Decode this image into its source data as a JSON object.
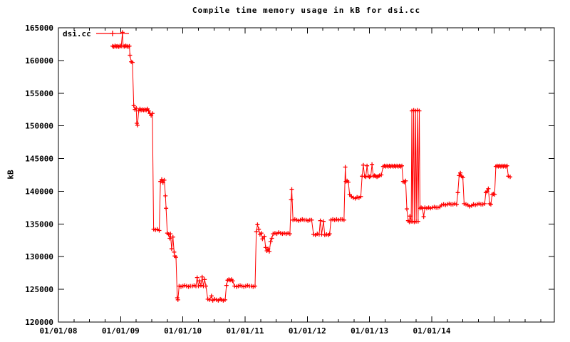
{
  "chart_data": {
    "type": "line",
    "title": "Compile time memory usage in kB for dsi.cc",
    "xlabel": "",
    "ylabel": "kB",
    "x_unit": "decimal_year",
    "xlim": [
      2008.0,
      2015.97
    ],
    "ylim": [
      120000,
      165000
    ],
    "grid": false,
    "legend_position": "top-left",
    "marker": "plus",
    "line_color": "#ff0000",
    "axis_color": "#000000",
    "background_color": "#ffffff",
    "x_minor_tick_step": 0.25,
    "x_ticks": [
      {
        "pos": 2008,
        "label": "01/01/08"
      },
      {
        "pos": 2009,
        "label": "01/01/09"
      },
      {
        "pos": 2010,
        "label": "01/01/10"
      },
      {
        "pos": 2011,
        "label": "01/01/11"
      },
      {
        "pos": 2012,
        "label": "01/01/12"
      },
      {
        "pos": 2013,
        "label": "01/01/13"
      },
      {
        "pos": 2014,
        "label": "01/01/14"
      },
      {
        "pos": 2015,
        "label": ""
      }
    ],
    "y_ticks": [
      {
        "pos": 120000,
        "label": "120000"
      },
      {
        "pos": 125000,
        "label": "125000"
      },
      {
        "pos": 130000,
        "label": "130000"
      },
      {
        "pos": 135000,
        "label": "135000"
      },
      {
        "pos": 140000,
        "label": "140000"
      },
      {
        "pos": 145000,
        "label": "145000"
      },
      {
        "pos": 150000,
        "label": "150000"
      },
      {
        "pos": 155000,
        "label": "155000"
      },
      {
        "pos": 160000,
        "label": "160000"
      },
      {
        "pos": 165000,
        "label": "165000"
      }
    ],
    "series": [
      {
        "name": "dsi.cc",
        "points": [
          [
            2008.87,
            162200
          ],
          [
            2008.89,
            162100
          ],
          [
            2008.91,
            162250
          ],
          [
            2008.93,
            162150
          ],
          [
            2008.95,
            162200
          ],
          [
            2008.97,
            162100
          ],
          [
            2008.99,
            162250
          ],
          [
            2009.01,
            162200
          ],
          [
            2009.03,
            164300
          ],
          [
            2009.04,
            162200
          ],
          [
            2009.06,
            162150
          ],
          [
            2009.08,
            162250
          ],
          [
            2009.1,
            162200
          ],
          [
            2009.12,
            162100
          ],
          [
            2009.14,
            162200
          ],
          [
            2009.15,
            160800
          ],
          [
            2009.17,
            159800
          ],
          [
            2009.19,
            159700
          ],
          [
            2009.21,
            153100
          ],
          [
            2009.23,
            152500
          ],
          [
            2009.25,
            152700
          ],
          [
            2009.26,
            150400
          ],
          [
            2009.27,
            150100
          ],
          [
            2009.29,
            152300
          ],
          [
            2009.31,
            152600
          ],
          [
            2009.33,
            152400
          ],
          [
            2009.35,
            152500
          ],
          [
            2009.37,
            152400
          ],
          [
            2009.39,
            152500
          ],
          [
            2009.41,
            152400
          ],
          [
            2009.43,
            152600
          ],
          [
            2009.45,
            152300
          ],
          [
            2009.47,
            151900
          ],
          [
            2009.49,
            151600
          ],
          [
            2009.51,
            151900
          ],
          [
            2009.53,
            134200
          ],
          [
            2009.56,
            134100
          ],
          [
            2009.59,
            134200
          ],
          [
            2009.62,
            134000
          ],
          [
            2009.64,
            141500
          ],
          [
            2009.66,
            141800
          ],
          [
            2009.68,
            141300
          ],
          [
            2009.7,
            141700
          ],
          [
            2009.72,
            139300
          ],
          [
            2009.73,
            137400
          ],
          [
            2009.75,
            133600
          ],
          [
            2009.77,
            133400
          ],
          [
            2009.79,
            132800
          ],
          [
            2009.8,
            133500
          ],
          [
            2009.82,
            131200
          ],
          [
            2009.84,
            133000
          ],
          [
            2009.86,
            130700
          ],
          [
            2009.87,
            130100
          ],
          [
            2009.89,
            129900
          ],
          [
            2009.91,
            123700
          ],
          [
            2009.92,
            123400
          ],
          [
            2009.94,
            125500
          ],
          [
            2009.97,
            125400
          ],
          [
            2010.0,
            125500
          ],
          [
            2010.03,
            125600
          ],
          [
            2010.06,
            125500
          ],
          [
            2010.09,
            125400
          ],
          [
            2010.12,
            125500
          ],
          [
            2010.15,
            125500
          ],
          [
            2010.18,
            125600
          ],
          [
            2010.21,
            125500
          ],
          [
            2010.23,
            126800
          ],
          [
            2010.25,
            125500
          ],
          [
            2010.27,
            126300
          ],
          [
            2010.29,
            125600
          ],
          [
            2010.31,
            126900
          ],
          [
            2010.33,
            125500
          ],
          [
            2010.35,
            126500
          ],
          [
            2010.37,
            125500
          ],
          [
            2010.4,
            123500
          ],
          [
            2010.43,
            123400
          ],
          [
            2010.46,
            124000
          ],
          [
            2010.48,
            123300
          ],
          [
            2010.51,
            123500
          ],
          [
            2010.54,
            123400
          ],
          [
            2010.57,
            123300
          ],
          [
            2010.6,
            123500
          ],
          [
            2010.62,
            123400
          ],
          [
            2010.65,
            123300
          ],
          [
            2010.68,
            123400
          ],
          [
            2010.7,
            125600
          ],
          [
            2010.72,
            126400
          ],
          [
            2010.74,
            126500
          ],
          [
            2010.76,
            126400
          ],
          [
            2010.78,
            126500
          ],
          [
            2010.8,
            126300
          ],
          [
            2010.83,
            125500
          ],
          [
            2010.86,
            125400
          ],
          [
            2010.89,
            125500
          ],
          [
            2010.92,
            125600
          ],
          [
            2010.95,
            125500
          ],
          [
            2010.98,
            125400
          ],
          [
            2011.01,
            125500
          ],
          [
            2011.04,
            125600
          ],
          [
            2011.07,
            125500
          ],
          [
            2011.1,
            125500
          ],
          [
            2011.13,
            125400
          ],
          [
            2011.16,
            125500
          ],
          [
            2011.18,
            133800
          ],
          [
            2011.2,
            134900
          ],
          [
            2011.22,
            134200
          ],
          [
            2011.24,
            133400
          ],
          [
            2011.26,
            133600
          ],
          [
            2011.28,
            132700
          ],
          [
            2011.31,
            133100
          ],
          [
            2011.33,
            131400
          ],
          [
            2011.35,
            130900
          ],
          [
            2011.37,
            131200
          ],
          [
            2011.39,
            130800
          ],
          [
            2011.41,
            132300
          ],
          [
            2011.43,
            132800
          ],
          [
            2011.45,
            133500
          ],
          [
            2011.48,
            133600
          ],
          [
            2011.51,
            133500
          ],
          [
            2011.54,
            133700
          ],
          [
            2011.57,
            133600
          ],
          [
            2011.6,
            133500
          ],
          [
            2011.63,
            133600
          ],
          [
            2011.66,
            133500
          ],
          [
            2011.69,
            133600
          ],
          [
            2011.72,
            133500
          ],
          [
            2011.74,
            138700
          ],
          [
            2011.75,
            140300
          ],
          [
            2011.77,
            135600
          ],
          [
            2011.8,
            135700
          ],
          [
            2011.83,
            135600
          ],
          [
            2011.86,
            135500
          ],
          [
            2011.89,
            135600
          ],
          [
            2011.92,
            135700
          ],
          [
            2011.95,
            135600
          ],
          [
            2011.98,
            135600
          ],
          [
            2012.01,
            135500
          ],
          [
            2012.04,
            135600
          ],
          [
            2012.07,
            135600
          ],
          [
            2012.1,
            133400
          ],
          [
            2012.13,
            133300
          ],
          [
            2012.16,
            133500
          ],
          [
            2012.19,
            133400
          ],
          [
            2012.21,
            135500
          ],
          [
            2012.23,
            133400
          ],
          [
            2012.26,
            135400
          ],
          [
            2012.28,
            133300
          ],
          [
            2012.31,
            133400
          ],
          [
            2012.34,
            133300
          ],
          [
            2012.36,
            133500
          ],
          [
            2012.38,
            135600
          ],
          [
            2012.41,
            135700
          ],
          [
            2012.44,
            135600
          ],
          [
            2012.47,
            135700
          ],
          [
            2012.5,
            135600
          ],
          [
            2012.53,
            135700
          ],
          [
            2012.56,
            135700
          ],
          [
            2012.59,
            135600
          ],
          [
            2012.61,
            143700
          ],
          [
            2012.62,
            141500
          ],
          [
            2012.64,
            141600
          ],
          [
            2012.66,
            141400
          ],
          [
            2012.68,
            139500
          ],
          [
            2012.71,
            139200
          ],
          [
            2012.74,
            139000
          ],
          [
            2012.77,
            138900
          ],
          [
            2012.8,
            139100
          ],
          [
            2012.83,
            139000
          ],
          [
            2012.86,
            139200
          ],
          [
            2012.88,
            142300
          ],
          [
            2012.9,
            144000
          ],
          [
            2012.92,
            142300
          ],
          [
            2012.94,
            142200
          ],
          [
            2012.96,
            143900
          ],
          [
            2012.98,
            142300
          ],
          [
            2013.0,
            142200
          ],
          [
            2013.02,
            142300
          ],
          [
            2013.04,
            144100
          ],
          [
            2013.06,
            142300
          ],
          [
            2013.08,
            142400
          ],
          [
            2013.1,
            142300
          ],
          [
            2013.12,
            142200
          ],
          [
            2013.14,
            142300
          ],
          [
            2013.16,
            142400
          ],
          [
            2013.19,
            142500
          ],
          [
            2013.22,
            143800
          ],
          [
            2013.24,
            143900
          ],
          [
            2013.26,
            143800
          ],
          [
            2013.28,
            143900
          ],
          [
            2013.3,
            143800
          ],
          [
            2013.32,
            143900
          ],
          [
            2013.34,
            143800
          ],
          [
            2013.36,
            143900
          ],
          [
            2013.38,
            143800
          ],
          [
            2013.4,
            143900
          ],
          [
            2013.42,
            143800
          ],
          [
            2013.44,
            143900
          ],
          [
            2013.46,
            143800
          ],
          [
            2013.48,
            143900
          ],
          [
            2013.5,
            143800
          ],
          [
            2013.52,
            143900
          ],
          [
            2013.54,
            141500
          ],
          [
            2013.56,
            141400
          ],
          [
            2013.58,
            141600
          ],
          [
            2013.6,
            137300
          ],
          [
            2013.62,
            135500
          ],
          [
            2013.64,
            135300
          ],
          [
            2013.65,
            136200
          ],
          [
            2013.67,
            135400
          ],
          [
            2013.68,
            152300
          ],
          [
            2013.69,
            135400
          ],
          [
            2013.71,
            152400
          ],
          [
            2013.72,
            135300
          ],
          [
            2013.74,
            152300
          ],
          [
            2013.75,
            135400
          ],
          [
            2013.77,
            152400
          ],
          [
            2013.78,
            135400
          ],
          [
            2013.8,
            152300
          ],
          [
            2013.81,
            137400
          ],
          [
            2013.83,
            137500
          ],
          [
            2013.85,
            137400
          ],
          [
            2013.87,
            136100
          ],
          [
            2013.89,
            137500
          ],
          [
            2013.92,
            137400
          ],
          [
            2013.95,
            137500
          ],
          [
            2013.98,
            137400
          ],
          [
            2014.01,
            137500
          ],
          [
            2014.04,
            137600
          ],
          [
            2014.07,
            137500
          ],
          [
            2014.1,
            137500
          ],
          [
            2014.13,
            137600
          ],
          [
            2014.16,
            137900
          ],
          [
            2014.19,
            138000
          ],
          [
            2014.22,
            137900
          ],
          [
            2014.25,
            138000
          ],
          [
            2014.28,
            138100
          ],
          [
            2014.31,
            138000
          ],
          [
            2014.34,
            138000
          ],
          [
            2014.37,
            138100
          ],
          [
            2014.4,
            138000
          ],
          [
            2014.42,
            139800
          ],
          [
            2014.44,
            142400
          ],
          [
            2014.46,
            142800
          ],
          [
            2014.48,
            142300
          ],
          [
            2014.5,
            142100
          ],
          [
            2014.52,
            138100
          ],
          [
            2014.55,
            138000
          ],
          [
            2014.58,
            137900
          ],
          [
            2014.61,
            137700
          ],
          [
            2014.64,
            137800
          ],
          [
            2014.67,
            138000
          ],
          [
            2014.7,
            137900
          ],
          [
            2014.73,
            138000
          ],
          [
            2014.76,
            138100
          ],
          [
            2014.79,
            138000
          ],
          [
            2014.82,
            138000
          ],
          [
            2014.85,
            138100
          ],
          [
            2014.87,
            139800
          ],
          [
            2014.89,
            140000
          ],
          [
            2014.91,
            140400
          ],
          [
            2014.93,
            138100
          ],
          [
            2014.95,
            138000
          ],
          [
            2014.97,
            139500
          ],
          [
            2014.99,
            139600
          ],
          [
            2015.01,
            139500
          ],
          [
            2015.03,
            143800
          ],
          [
            2015.05,
            143900
          ],
          [
            2015.07,
            143800
          ],
          [
            2015.09,
            143900
          ],
          [
            2015.11,
            143800
          ],
          [
            2015.13,
            143900
          ],
          [
            2015.15,
            143800
          ],
          [
            2015.17,
            143900
          ],
          [
            2015.19,
            143800
          ],
          [
            2015.21,
            143900
          ],
          [
            2015.23,
            142300
          ],
          [
            2015.26,
            142200
          ]
        ]
      }
    ]
  }
}
